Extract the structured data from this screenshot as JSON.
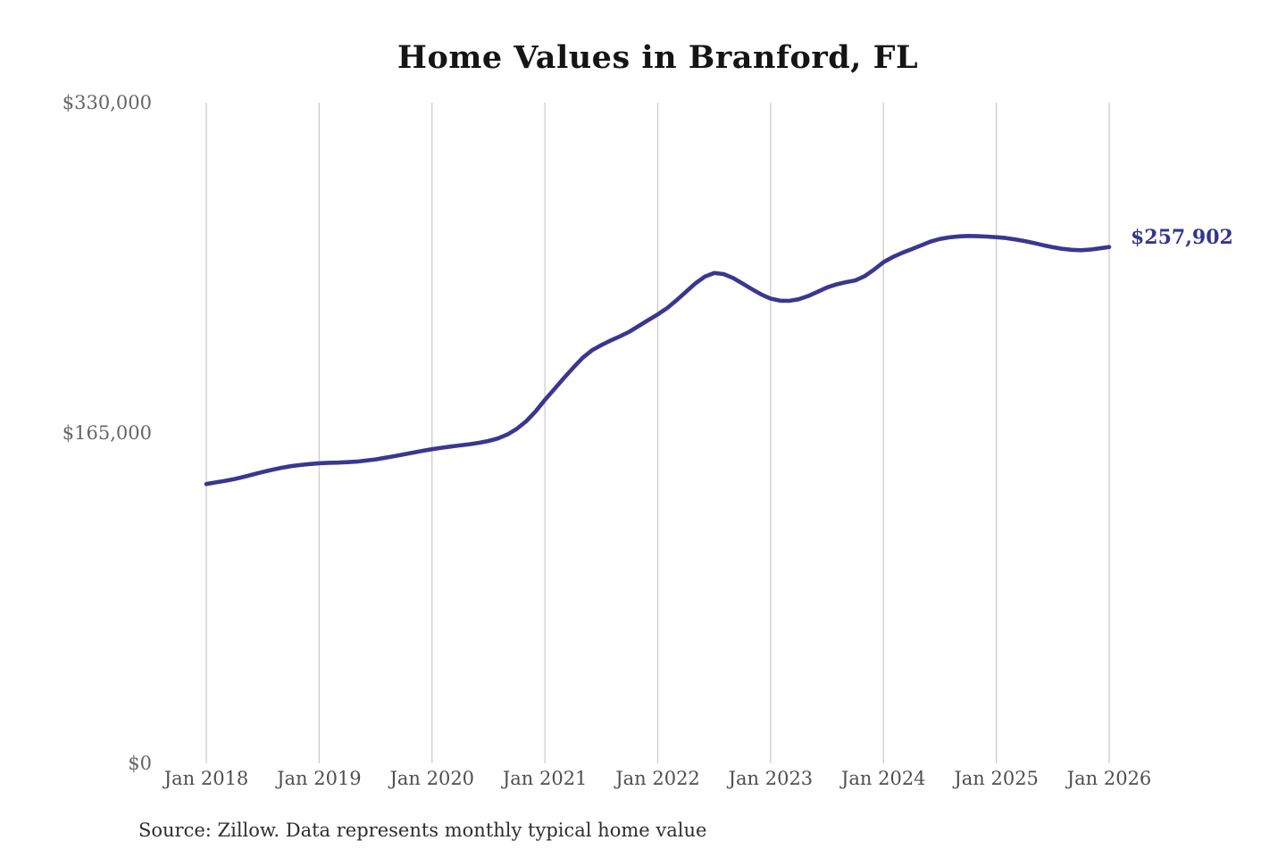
{
  "chart_data": {
    "type": "line",
    "title": "Home Values in Branford, FL",
    "source_note": "Source: Zillow. Data represents monthly typical home value",
    "xlabel": "",
    "ylabel": "",
    "x_start": "Jan 2018",
    "x_end": "Jan 2026",
    "x_frequency": "monthly",
    "x_tick_labels": [
      "Jan 2018",
      "Jan 2019",
      "Jan 2020",
      "Jan 2021",
      "Jan 2022",
      "Jan 2023",
      "Jan 2024",
      "Jan 2025",
      "Jan 2026"
    ],
    "y_tick_labels": [
      "$0",
      "$165,000",
      "$330,000"
    ],
    "y_tick_values": [
      0,
      165000,
      330000
    ],
    "ylim": [
      0,
      330000
    ],
    "grid": "vertical-only",
    "legend": "none",
    "annotation": {
      "text": "$257,902",
      "value": 257902,
      "position": "end-of-line"
    },
    "series": [
      {
        "name": "Monthly typical home value",
        "color": "#3a3790",
        "values": [
          139500,
          140300,
          141100,
          142000,
          143100,
          144300,
          145500,
          146600,
          147600,
          148400,
          149000,
          149500,
          149900,
          150100,
          150200,
          150400,
          150700,
          151200,
          151800,
          152600,
          153400,
          154300,
          155200,
          156100,
          156900,
          157600,
          158200,
          158800,
          159400,
          160100,
          161000,
          162300,
          164200,
          167000,
          170800,
          175700,
          181500,
          186900,
          192300,
          197500,
          202500,
          206300,
          208900,
          211200,
          213300,
          215600,
          218500,
          221400,
          224200,
          227400,
          231300,
          235500,
          239700,
          243100,
          244900,
          244400,
          242400,
          239700,
          236900,
          234200,
          232100,
          231100,
          231000,
          231800,
          233400,
          235500,
          237700,
          239200,
          240300,
          241200,
          243300,
          246600,
          250300,
          252900,
          255000,
          256800,
          258700,
          260600,
          261900,
          262700,
          263200,
          263400,
          263300,
          263100,
          262800,
          262400,
          261700,
          260900,
          259900,
          258800,
          257800,
          257000,
          256500,
          256300,
          256600,
          257200,
          257902
        ]
      }
    ],
    "colors": {
      "line": "#3a3790",
      "grid": "#cccccc",
      "y_tick_text": "#666666",
      "x_tick_text": "#4f4f4f",
      "title_text": "#151515",
      "source_text": "#2e2e2e",
      "annotation_text": "#33368f"
    }
  }
}
